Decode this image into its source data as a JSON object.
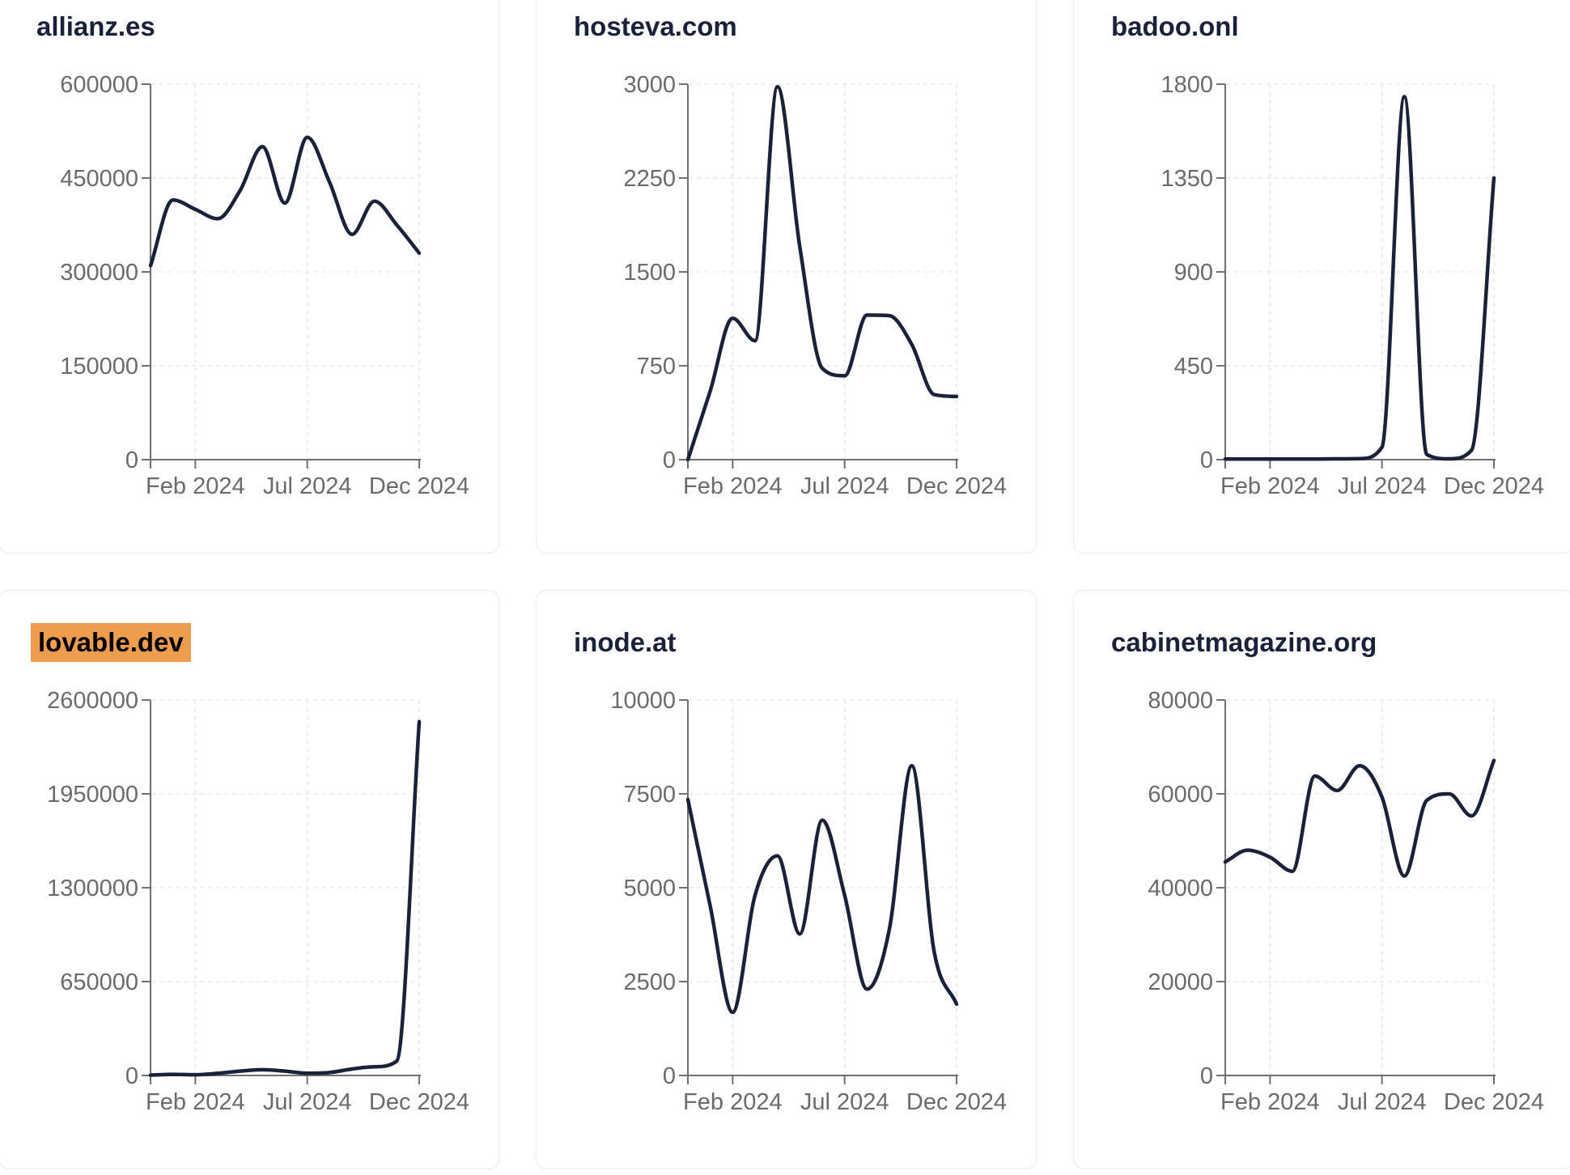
{
  "page": {
    "background": "#ffffff",
    "card_border_color": "#e7e9f1",
    "line_color": "#1b2138",
    "axis_color": "#707070",
    "grid_color": "#e8e8e8",
    "label_color": "#6b6b6b",
    "title_color": "#1b2138",
    "highlight_color": "#ee9d4e"
  },
  "chart_data": [
    {
      "type": "line",
      "title": "allianz.es",
      "title_highlighted": false,
      "x_months": [
        "Dec 2023",
        "Jan 2024",
        "Feb 2024",
        "Mar 2024",
        "Apr 2024",
        "May 2024",
        "Jun 2024",
        "Jul 2024",
        "Aug 2024",
        "Sep 2024",
        "Oct 2024",
        "Nov 2024",
        "Dec 2024"
      ],
      "values": [
        310000,
        415000,
        400000,
        385000,
        430000,
        500000,
        410000,
        515000,
        443000,
        360000,
        413000,
        375000,
        330000
      ],
      "ylim": [
        0,
        600000
      ],
      "yticks": [
        0,
        150000,
        300000,
        450000,
        600000
      ],
      "ytick_labels": [
        "0",
        "150000",
        "300000",
        "450000",
        "600000"
      ],
      "x_tick_indices": [
        2,
        7,
        12
      ],
      "x_tick_labels": [
        "Feb 2024",
        "Jul 2024",
        "Dec 2024"
      ],
      "grid": true,
      "legend": "none"
    },
    {
      "type": "line",
      "title": "hosteva.com",
      "title_highlighted": false,
      "x_months": [
        "Dec 2023",
        "Jan 2024",
        "Feb 2024",
        "Mar 2024",
        "Apr 2024",
        "May 2024",
        "Jun 2024",
        "Jul 2024",
        "Aug 2024",
        "Sep 2024",
        "Oct 2024",
        "Nov 2024",
        "Dec 2024"
      ],
      "values": [
        0,
        550,
        1130,
        950,
        2980,
        1700,
        730,
        670,
        1155,
        1150,
        920,
        520,
        505
      ],
      "ylim": [
        0,
        3000
      ],
      "yticks": [
        0,
        750,
        1500,
        2250,
        3000
      ],
      "ytick_labels": [
        "0",
        "750",
        "1500",
        "2250",
        "3000"
      ],
      "x_tick_indices": [
        2,
        7,
        12
      ],
      "x_tick_labels": [
        "Feb 2024",
        "Jul 2024",
        "Dec 2024"
      ],
      "grid": true,
      "legend": "none"
    },
    {
      "type": "line",
      "title": "badoo.onl",
      "title_highlighted": false,
      "x_months": [
        "Dec 2023",
        "Jan 2024",
        "Feb 2024",
        "Mar 2024",
        "Apr 2024",
        "May 2024",
        "Jun 2024",
        "Jul 2024",
        "Aug 2024",
        "Sep 2024",
        "Oct 2024",
        "Nov 2024",
        "Dec 2024"
      ],
      "values": [
        3,
        3,
        3,
        3,
        3,
        4,
        5,
        60,
        1740,
        25,
        4,
        45,
        1350
      ],
      "ylim": [
        0,
        1800
      ],
      "yticks": [
        0,
        450,
        900,
        1350,
        1800
      ],
      "ytick_labels": [
        "0",
        "450",
        "900",
        "1350",
        "1800"
      ],
      "x_tick_indices": [
        2,
        7,
        12
      ],
      "x_tick_labels": [
        "Feb 2024",
        "Jul 2024",
        "Dec 2024"
      ],
      "grid": true,
      "legend": "none"
    },
    {
      "type": "line",
      "title": "lovable.dev",
      "title_highlighted": true,
      "x_months": [
        "Dec 2023",
        "Jan 2024",
        "Feb 2024",
        "Mar 2024",
        "Apr 2024",
        "May 2024",
        "Jun 2024",
        "Jul 2024",
        "Aug 2024",
        "Sep 2024",
        "Oct 2024",
        "Nov 2024",
        "Dec 2024"
      ],
      "values": [
        2000,
        8000,
        5000,
        15000,
        30000,
        40000,
        30000,
        15000,
        20000,
        45000,
        60000,
        100000,
        2450000
      ],
      "ylim": [
        0,
        2600000
      ],
      "yticks": [
        0,
        650000,
        1300000,
        1950000,
        2600000
      ],
      "ytick_labels": [
        "0",
        "650000",
        "1300000",
        "1950000",
        "2600000"
      ],
      "x_tick_indices": [
        2,
        7,
        12
      ],
      "x_tick_labels": [
        "Feb 2024",
        "Jul 2024",
        "Dec 2024"
      ],
      "grid": true,
      "legend": "none"
    },
    {
      "type": "line",
      "title": "inode.at",
      "title_highlighted": false,
      "x_months": [
        "Dec 2023",
        "Jan 2024",
        "Feb 2024",
        "Mar 2024",
        "Apr 2024",
        "May 2024",
        "Jun 2024",
        "Jul 2024",
        "Aug 2024",
        "Sep 2024",
        "Oct 2024",
        "Nov 2024",
        "Dec 2024"
      ],
      "values": [
        7350,
        4500,
        1680,
        4800,
        5850,
        3770,
        6800,
        4800,
        2300,
        3900,
        8250,
        3300,
        1900
      ],
      "ylim": [
        0,
        10000
      ],
      "yticks": [
        0,
        2500,
        5000,
        7500,
        10000
      ],
      "ytick_labels": [
        "0",
        "2500",
        "5000",
        "7500",
        "10000"
      ],
      "x_tick_indices": [
        2,
        7,
        12
      ],
      "x_tick_labels": [
        "Feb 2024",
        "Jul 2024",
        "Dec 2024"
      ],
      "grid": true,
      "legend": "none"
    },
    {
      "type": "line",
      "title": "cabinetmagazine.org",
      "title_highlighted": false,
      "x_months": [
        "Dec 2023",
        "Jan 2024",
        "Feb 2024",
        "Mar 2024",
        "Apr 2024",
        "May 2024",
        "Jun 2024",
        "Jul 2024",
        "Aug 2024",
        "Sep 2024",
        "Oct 2024",
        "Nov 2024",
        "Dec 2024"
      ],
      "values": [
        45500,
        48000,
        46500,
        43500,
        63800,
        60700,
        66000,
        59300,
        42500,
        58600,
        60000,
        55300,
        67100
      ],
      "ylim": [
        0,
        80000
      ],
      "yticks": [
        0,
        20000,
        40000,
        60000,
        80000
      ],
      "ytick_labels": [
        "0",
        "20000",
        "40000",
        "60000",
        "80000"
      ],
      "x_tick_indices": [
        2,
        7,
        12
      ],
      "x_tick_labels": [
        "Feb 2024",
        "Jul 2024",
        "Dec 2024"
      ],
      "grid": true,
      "legend": "none"
    }
  ]
}
